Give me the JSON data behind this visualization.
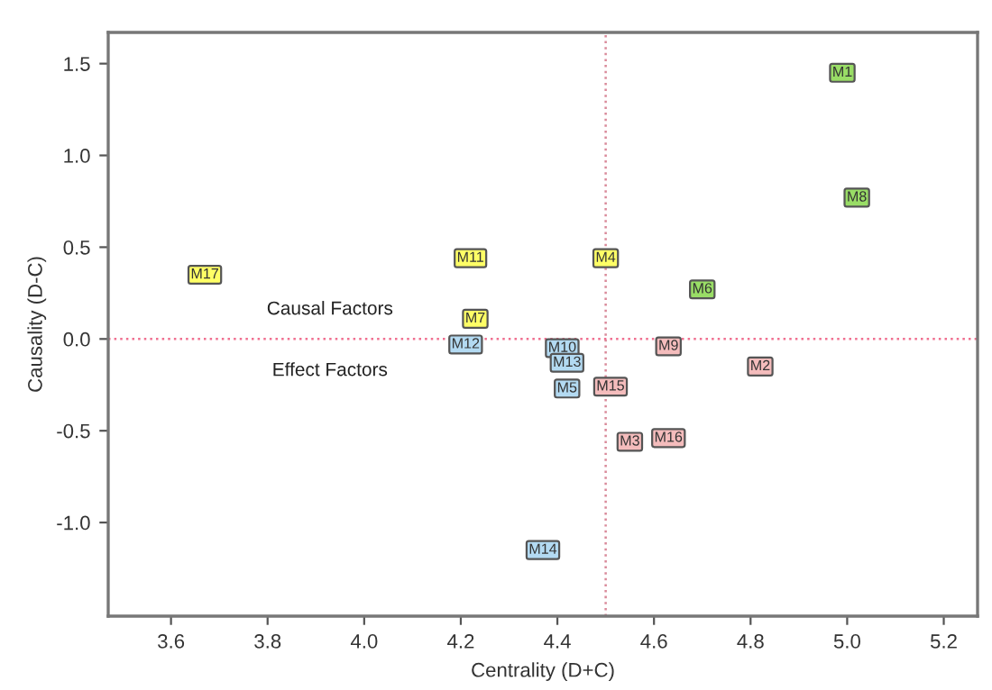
{
  "chart_data": {
    "type": "scatter",
    "xlabel": "Centrality (D+C)",
    "ylabel": "Causality (D-C)",
    "xlim": [
      3.47,
      5.27
    ],
    "xticks": [
      {
        "value": 3.6,
        "label": "3.6"
      },
      {
        "value": 3.8,
        "label": "3.8"
      },
      {
        "value": 4.0,
        "label": "4.0"
      },
      {
        "value": 4.2,
        "label": "4.2"
      },
      {
        "value": 4.4,
        "label": "4.4"
      },
      {
        "value": 4.6,
        "label": "4.6"
      },
      {
        "value": 4.8,
        "label": "4.8"
      },
      {
        "value": 5.0,
        "label": "5.0"
      },
      {
        "value": 5.2,
        "label": "5.2"
      }
    ],
    "ylim": [
      -1.51,
      1.67
    ],
    "yticks": [
      {
        "value": -1.0,
        "label": "-1.0"
      },
      {
        "value": -0.5,
        "label": "-0.5"
      },
      {
        "value": 0.0,
        "label": "0.0"
      },
      {
        "value": 0.5,
        "label": "0.5"
      },
      {
        "value": 1.0,
        "label": "1.0"
      },
      {
        "value": 1.5,
        "label": "1.5"
      }
    ],
    "grid": false,
    "legend": false,
    "marker": "square",
    "series": [
      {
        "color": "#99dd66",
        "x": [
          4.99,
          5.02,
          4.7
        ],
        "values": [
          1.45,
          0.77,
          0.27
        ],
        "value_labels": [
          "M1",
          "M8",
          "M6"
        ]
      },
      {
        "color": "#ffff66",
        "x": [
          4.22,
          4.5,
          3.67,
          4.23
        ],
        "values": [
          0.44,
          0.44,
          0.35,
          0.11
        ],
        "value_labels": [
          "M11",
          "M4",
          "M17",
          "M7"
        ]
      },
      {
        "color": "#b3daf2",
        "x": [
          4.21,
          4.41,
          4.42,
          4.42,
          4.37
        ],
        "values": [
          -0.03,
          -0.05,
          -0.13,
          -0.27,
          -1.15
        ],
        "value_labels": [
          "M12",
          "M10",
          "M13",
          "M5",
          "M14"
        ]
      },
      {
        "color": "#f4bcbc",
        "x": [
          4.63,
          4.82,
          4.51,
          4.55,
          4.63
        ],
        "values": [
          -0.04,
          -0.15,
          -0.26,
          -0.56,
          -0.54
        ],
        "value_labels": [
          "M9",
          "M2",
          "M15",
          "M3",
          "M16"
        ]
      }
    ],
    "ref_lines": [
      {
        "axis": "x",
        "value": 4.5,
        "color": "#d98a9a",
        "line_style": "dotted"
      },
      {
        "axis": "y",
        "value": 0.0,
        "color": "#f07090",
        "line_style": "dotted"
      }
    ],
    "annotations": [
      "Causal Factors",
      "Effect Factors"
    ]
  }
}
